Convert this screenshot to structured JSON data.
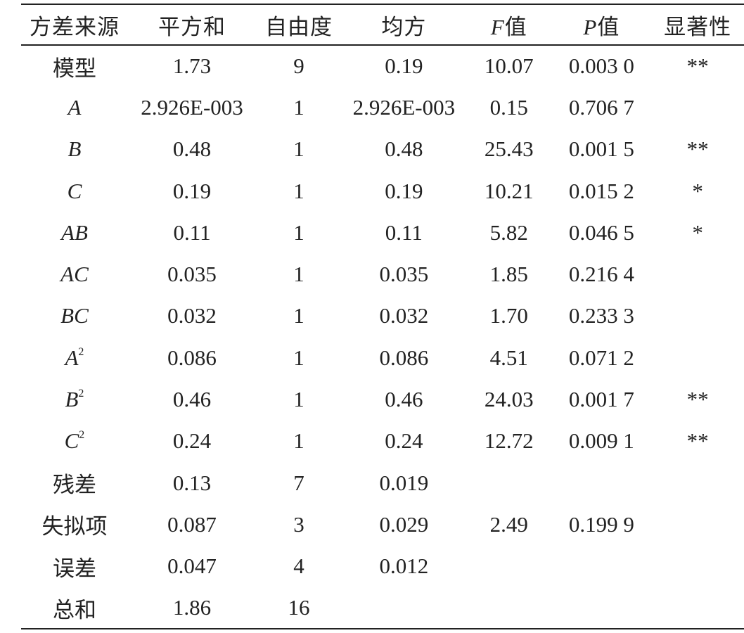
{
  "table": {
    "headers": [
      {
        "text": "方差来源"
      },
      {
        "text": "平方和"
      },
      {
        "text": "自由度"
      },
      {
        "text": "均方"
      },
      {
        "italic_part": "F",
        "text": "值"
      },
      {
        "italic_part": "P",
        "text": "值"
      },
      {
        "text": "显著性"
      }
    ],
    "rows": [
      {
        "source": "模型",
        "italic": false,
        "sup": "",
        "ss": "1.73",
        "df": "9",
        "ms": "0.19",
        "f": "10.07",
        "p": "0.003 0",
        "sig": "**"
      },
      {
        "source": "A",
        "italic": true,
        "sup": "",
        "ss": "2.926E-003",
        "df": "1",
        "ms": "2.926E-003",
        "f": "0.15",
        "p": "0.706 7",
        "sig": ""
      },
      {
        "source": "B",
        "italic": true,
        "sup": "",
        "ss": "0.48",
        "df": "1",
        "ms": "0.48",
        "f": "25.43",
        "p": "0.001 5",
        "sig": "**"
      },
      {
        "source": "C",
        "italic": true,
        "sup": "",
        "ss": "0.19",
        "df": "1",
        "ms": "0.19",
        "f": "10.21",
        "p": "0.015 2",
        "sig": "*"
      },
      {
        "source": "AB",
        "italic": true,
        "sup": "",
        "ss": "0.11",
        "df": "1",
        "ms": "0.11",
        "f": "5.82",
        "p": "0.046 5",
        "sig": "*"
      },
      {
        "source": "AC",
        "italic": true,
        "sup": "",
        "ss": "0.035",
        "df": "1",
        "ms": "0.035",
        "f": "1.85",
        "p": "0.216 4",
        "sig": ""
      },
      {
        "source": "BC",
        "italic": true,
        "sup": "",
        "ss": "0.032",
        "df": "1",
        "ms": "0.032",
        "f": "1.70",
        "p": "0.233 3",
        "sig": ""
      },
      {
        "source": "A",
        "italic": true,
        "sup": "2",
        "ss": "0.086",
        "df": "1",
        "ms": "0.086",
        "f": "4.51",
        "p": "0.071 2",
        "sig": ""
      },
      {
        "source": "B",
        "italic": true,
        "sup": "2",
        "ss": "0.46",
        "df": "1",
        "ms": "0.46",
        "f": "24.03",
        "p": "0.001 7",
        "sig": "**"
      },
      {
        "source": "C",
        "italic": true,
        "sup": "2",
        "ss": "0.24",
        "df": "1",
        "ms": "0.24",
        "f": "12.72",
        "p": "0.009 1",
        "sig": "**"
      },
      {
        "source": "残差",
        "italic": false,
        "sup": "",
        "ss": "0.13",
        "df": "7",
        "ms": "0.019",
        "f": "",
        "p": "",
        "sig": ""
      },
      {
        "source": "失拟项",
        "italic": false,
        "sup": "",
        "ss": "0.087",
        "df": "3",
        "ms": "0.029",
        "f": "2.49",
        "p": "0.199 9",
        "sig": ""
      },
      {
        "source": "误差",
        "italic": false,
        "sup": "",
        "ss": "0.047",
        "df": "4",
        "ms": "0.012",
        "f": "",
        "p": "",
        "sig": ""
      },
      {
        "source": "总和",
        "italic": false,
        "sup": "",
        "ss": "1.86",
        "df": "16",
        "ms": "",
        "f": "",
        "p": "",
        "sig": ""
      }
    ]
  }
}
